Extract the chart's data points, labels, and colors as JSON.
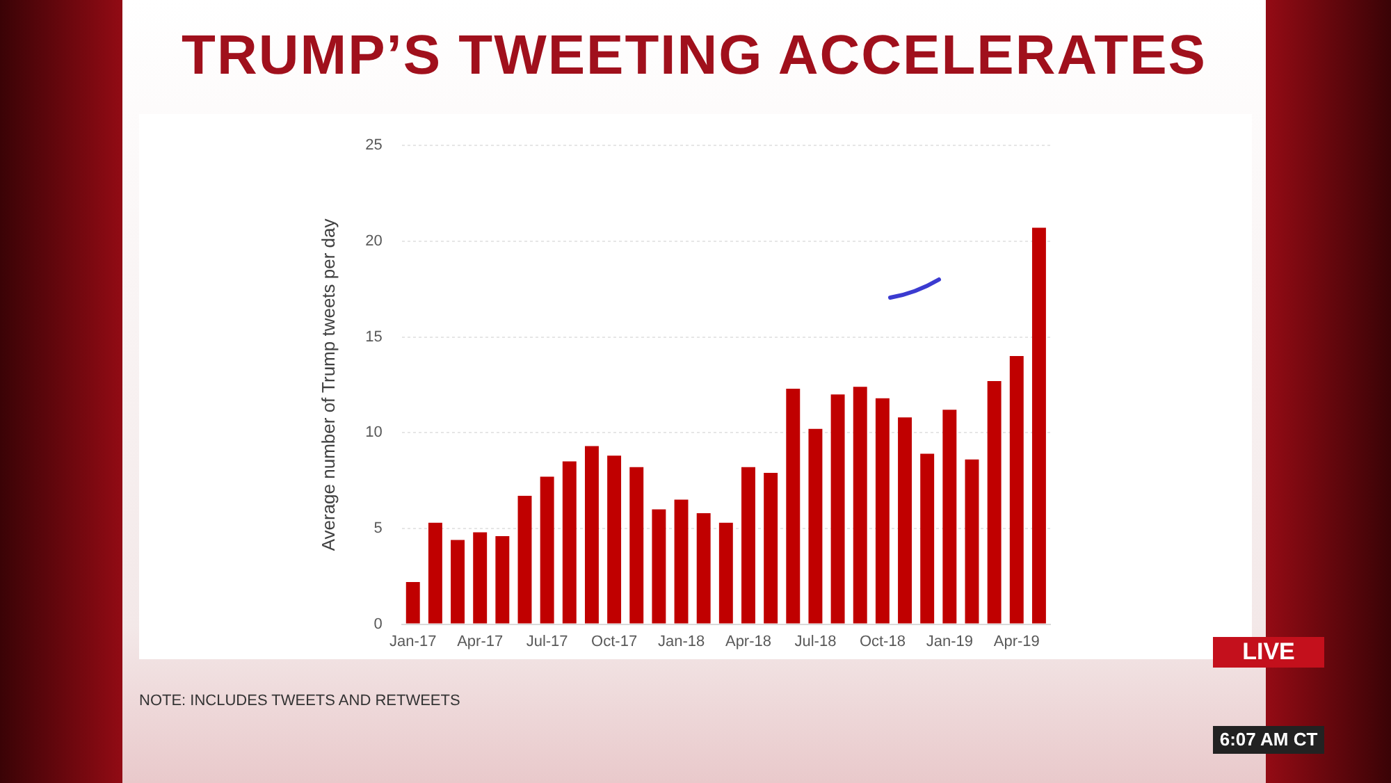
{
  "chart_data": {
    "type": "bar",
    "title": "TRUMP’S TWEETING ACCELERATES",
    "ylabel": "Average number of Trump tweets per day",
    "categories": [
      "Jan-17",
      null,
      null,
      "Apr-17",
      null,
      null,
      "Jul-17",
      null,
      null,
      "Oct-17",
      null,
      null,
      "Jan-18",
      null,
      null,
      "Apr-18",
      null,
      null,
      "Jul-18",
      null,
      null,
      "Oct-18",
      null,
      null,
      "Jan-19",
      null,
      null,
      "Apr-19",
      null
    ],
    "values": [
      2.2,
      5.3,
      4.4,
      4.8,
      4.6,
      6.7,
      7.7,
      8.5,
      9.3,
      8.8,
      8.2,
      6.0,
      6.5,
      5.8,
      5.3,
      8.2,
      7.9,
      12.3,
      10.2,
      12.0,
      12.4,
      11.8,
      10.8,
      8.9,
      11.2,
      8.6,
      12.7,
      14.0,
      20.7
    ],
    "color": "#c00000",
    "ylim": [
      0,
      25
    ],
    "yticks": [
      0,
      5,
      10,
      15,
      20,
      25
    ],
    "grid": "y",
    "legend": false,
    "annotations": [
      "NOTE: INCLUDES TWEETS AND RETWEETS",
      "LIVE",
      "6:07 AM CT"
    ]
  }
}
